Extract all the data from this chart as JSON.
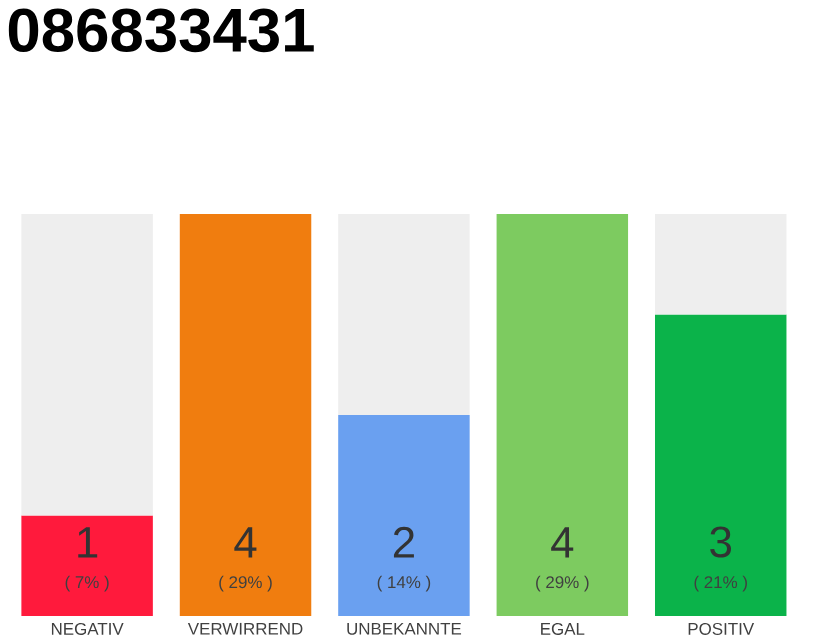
{
  "chart_data": {
    "type": "bar",
    "title": "086833431",
    "categories": [
      "NEGATIV",
      "VERWIRREND",
      "UNBEKANNTE",
      "EGAL",
      "POSITIV"
    ],
    "stacked": true,
    "annotations": [
      "( 7% )",
      "( 29% )",
      "( 14% )",
      "( 29% )",
      "( 21% )"
    ],
    "series": [
      {
        "colors": [
          "#ff1a3c",
          "#f07d0f",
          "#6aa0f0",
          "#7dcb60",
          "#0bb34a"
        ],
        "values": [
          1,
          4,
          2,
          4,
          3
        ],
        "value_labels": [
          "1",
          "4",
          "2",
          "4",
          "3"
        ]
      },
      {
        "color": "#eeeeee",
        "values": [
          3,
          0,
          2,
          0,
          1
        ]
      }
    ]
  }
}
